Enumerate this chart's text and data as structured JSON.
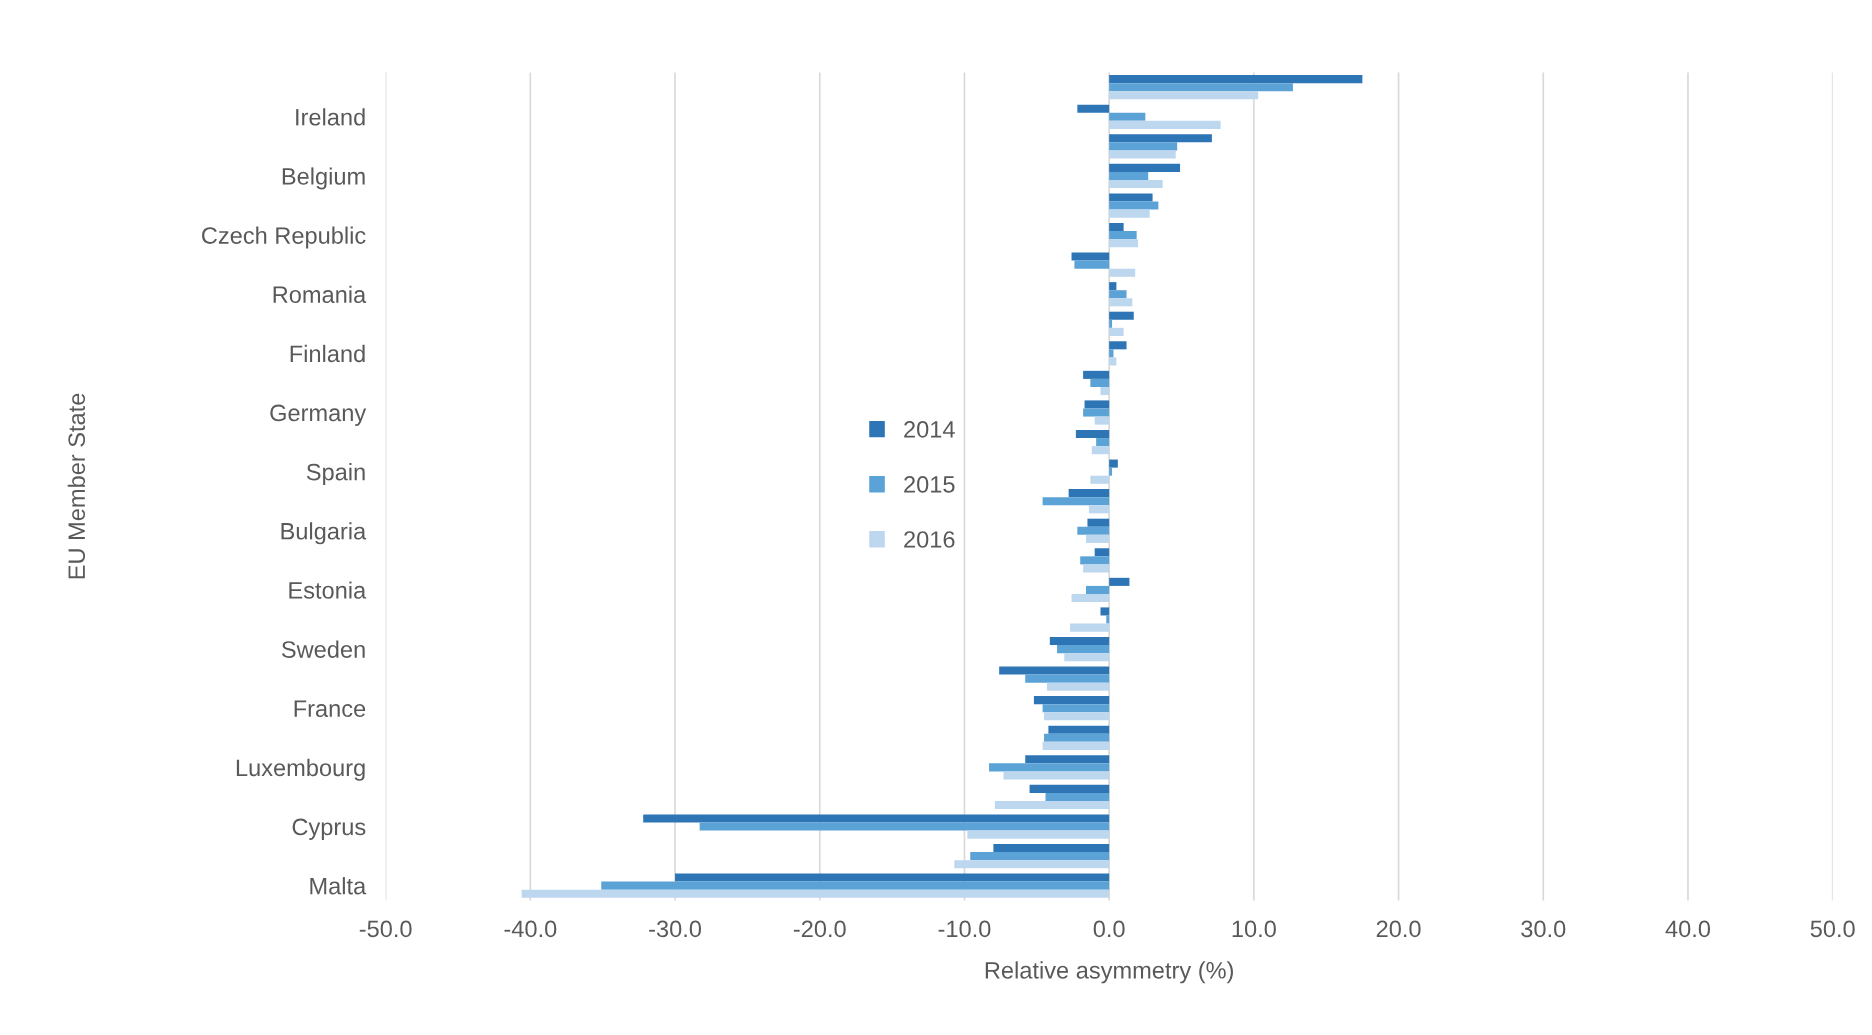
{
  "chart_data": {
    "type": "bar",
    "orientation": "horizontal",
    "xlabel": "Relative asymmetry (%)",
    "ylabel": "EU Member State",
    "categories": [
      null,
      "Ireland",
      null,
      "Belgium",
      null,
      "Czech Republic",
      null,
      "Romania",
      null,
      "Finland",
      null,
      "Germany",
      null,
      "Spain",
      null,
      "Bulgaria",
      null,
      "Estonia",
      null,
      "Sweden",
      null,
      "France",
      null,
      "Luxembourg",
      null,
      "Cyprus",
      null,
      "Malta"
    ],
    "series": [
      {
        "name": "2014",
        "color": "#2e75b6",
        "values": [
          17.5,
          -2.2,
          7.1,
          4.9,
          3.0,
          1.0,
          -2.6,
          0.5,
          1.7,
          1.2,
          -1.8,
          -1.7,
          -2.3,
          0.6,
          -2.8,
          -1.5,
          -1.0,
          1.4,
          -0.6,
          -4.1,
          -7.6,
          -5.2,
          -4.2,
          -5.8,
          -5.5,
          -32.2,
          -8.0,
          -30.0
        ]
      },
      {
        "name": "2015",
        "color": "#5ba3d6",
        "values": [
          12.7,
          2.5,
          4.7,
          2.7,
          3.4,
          1.9,
          -2.4,
          1.2,
          0.2,
          0.3,
          -1.3,
          -1.8,
          -0.9,
          0.2,
          -4.6,
          -2.2,
          -2.0,
          -1.6,
          -0.2,
          -3.6,
          -5.8,
          -4.6,
          -4.5,
          -8.3,
          -4.4,
          -28.3,
          -9.6,
          -35.1
        ]
      },
      {
        "name": "2016",
        "color": "#bdd7ee",
        "values": [
          10.3,
          7.7,
          4.6,
          3.7,
          2.8,
          2.0,
          1.8,
          1.6,
          1.0,
          0.5,
          -0.6,
          -1.0,
          -1.2,
          -1.3,
          -1.4,
          -1.6,
          -1.8,
          -2.6,
          -2.7,
          -3.1,
          -4.3,
          -4.5,
          -4.6,
          -7.3,
          -7.9,
          -9.8,
          -10.7,
          -40.6
        ]
      }
    ],
    "xlim": [
      -50,
      50
    ],
    "xticks": [
      {
        "value": -50,
        "label": "-50.0"
      },
      {
        "value": -40,
        "label": "-40.0"
      },
      {
        "value": -30,
        "label": "-30.0"
      },
      {
        "value": -20,
        "label": "-20.0"
      },
      {
        "value": -10,
        "label": "-10.0"
      },
      {
        "value": 0,
        "label": "0.0"
      },
      {
        "value": 10,
        "label": "10.0"
      },
      {
        "value": 20,
        "label": "20.0"
      },
      {
        "value": 30,
        "label": "30.0"
      },
      {
        "value": 40,
        "label": "40.0"
      },
      {
        "value": 50,
        "label": "50.0"
      }
    ],
    "grid": "x",
    "legend": "center left"
  }
}
